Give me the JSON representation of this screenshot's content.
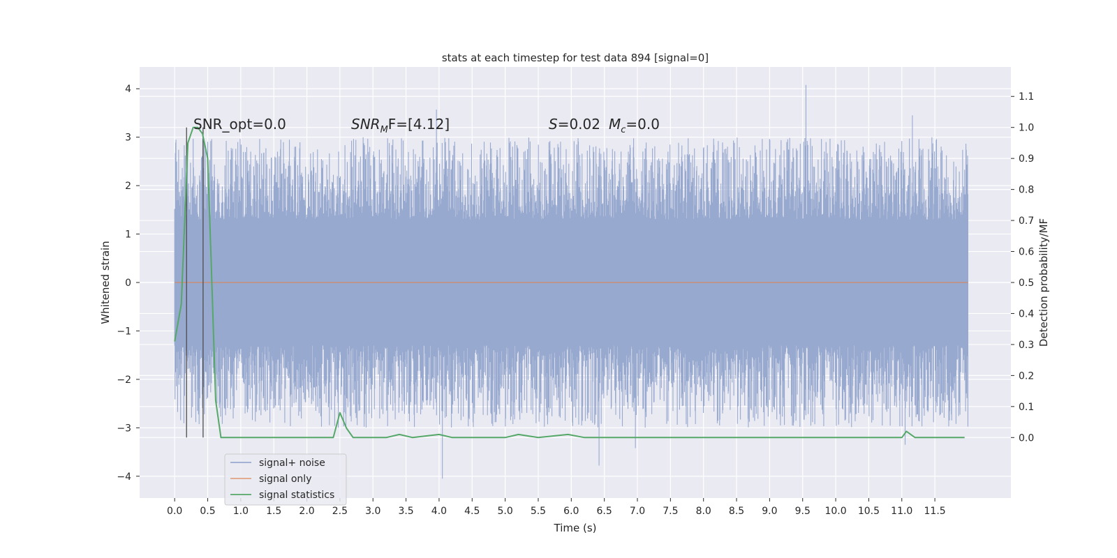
{
  "chart_data": {
    "type": "line",
    "title": "stats at each timestep for test data 894 [signal=0]",
    "xlabel": "Time (s)",
    "ylabel": "Whitened strain",
    "y2label": "Detection probability/MF",
    "xlim": [
      -0.53,
      12.65
    ],
    "ylim": [
      -4.45,
      4.45
    ],
    "y2lim": [
      -0.195,
      1.195
    ],
    "x_ticks": [
      "0.0",
      "0.5",
      "1.0",
      "1.5",
      "2.0",
      "2.5",
      "3.0",
      "3.5",
      "4.0",
      "4.5",
      "5.0",
      "5.5",
      "6.0",
      "6.5",
      "7.0",
      "7.5",
      "8.0",
      "8.5",
      "9.0",
      "9.5",
      "10.0",
      "10.5",
      "11.0",
      "11.5"
    ],
    "y_ticks": [
      "4",
      "3",
      "2",
      "1",
      "0",
      "−1",
      "−2",
      "−3",
      "−4"
    ],
    "y2_ticks": [
      "1.1",
      "1.0",
      "0.9",
      "0.8",
      "0.7",
      "0.6",
      "0.5",
      "0.4",
      "0.3",
      "0.2",
      "0.1",
      "0.0"
    ],
    "grid": true,
    "legend_position": "lower-left",
    "annotations": {
      "snr_opt": "SNR_opt=0.0",
      "snr_mf_main": "SNR",
      "snr_mf_sub": "M",
      "snr_mf_tail": "F=[4.12]",
      "s_main": "S",
      "s_tail": "=0.02",
      "mc_main": "M",
      "mc_sub": "c",
      "mc_tail": "=0.0"
    },
    "markers_x": [
      0.18,
      0.43
    ],
    "series": [
      {
        "name": "signal+ noise",
        "color": "#98a9cf",
        "axis": "left",
        "kind": "noise",
        "x_range": [
          0.0,
          12.0
        ],
        "envelope": [
          -1.3,
          1.3
        ],
        "spike_range": [
          -3.0,
          3.0
        ],
        "notable_peaks": [
          [
            0.02,
            2.95
          ],
          [
            3.96,
            3.57
          ],
          [
            9.55,
            4.08
          ],
          [
            11.16,
            3.45
          ],
          [
            4.05,
            -4.05
          ],
          [
            6.42,
            -3.78
          ],
          [
            6.97,
            -3.42
          ],
          [
            11.05,
            -3.35
          ]
        ]
      },
      {
        "name": "signal only",
        "color": "#dd8452",
        "axis": "left",
        "kind": "flat",
        "x": [
          0.0,
          12.0
        ],
        "y": [
          0.0,
          0.0
        ]
      },
      {
        "name": "signal statistics",
        "color": "#55a868",
        "axis": "right",
        "kind": "line",
        "x": [
          0.0,
          0.1,
          0.2,
          0.28,
          0.35,
          0.42,
          0.5,
          0.55,
          0.62,
          0.7,
          1.0,
          1.5,
          2.0,
          2.4,
          2.5,
          2.6,
          2.7,
          2.8,
          3.2,
          3.4,
          3.6,
          4.0,
          4.2,
          4.5,
          5.0,
          5.2,
          5.5,
          5.95,
          6.2,
          6.5,
          7.0,
          7.6,
          7.8,
          10.5,
          10.9,
          11.0,
          11.07,
          11.2,
          11.4,
          11.95
        ],
        "y": [
          0.31,
          0.43,
          0.95,
          1.0,
          1.0,
          0.98,
          0.9,
          0.58,
          0.12,
          0.0,
          0.0,
          0.0,
          0.0,
          0.0,
          0.08,
          0.03,
          0.0,
          0.0,
          0.0,
          0.01,
          0.0,
          0.01,
          0.0,
          0.0,
          0.0,
          0.01,
          0.0,
          0.01,
          0.0,
          0.0,
          0.0,
          0.0,
          0.0,
          0.0,
          0.0,
          0.0,
          0.02,
          0.0,
          0.0,
          0.0
        ]
      }
    ]
  }
}
